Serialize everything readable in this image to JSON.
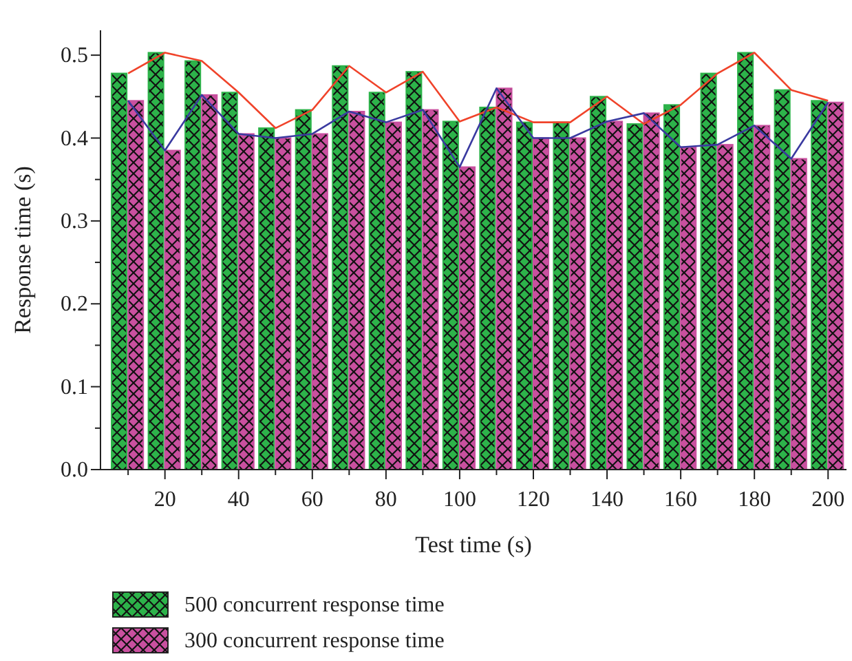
{
  "chart_data": {
    "type": "bar",
    "xlabel": "Test time (s)",
    "ylabel": "Response time (s)",
    "x": [
      10,
      20,
      30,
      40,
      50,
      60,
      70,
      80,
      90,
      100,
      110,
      120,
      130,
      140,
      150,
      160,
      170,
      180,
      190,
      200
    ],
    "xlim": [
      2.5,
      205
    ],
    "xticks": [
      {
        "value": 10,
        "label": null
      },
      20,
      {
        "value": 30,
        "label": null
      },
      40,
      {
        "value": 50,
        "label": null
      },
      60,
      {
        "value": 70,
        "label": null
      },
      80,
      {
        "value": 90,
        "label": null
      },
      100,
      {
        "value": 110,
        "label": null
      },
      120,
      {
        "value": 130,
        "label": null
      },
      140,
      {
        "value": 150,
        "label": null
      },
      160,
      {
        "value": 170,
        "label": null
      },
      180,
      {
        "value": 190,
        "label": null
      },
      200
    ],
    "ylim": [
      0,
      0.53
    ],
    "yticks": [
      {
        "value": 0,
        "label": "0.0"
      },
      {
        "value": 0.05,
        "label": null
      },
      {
        "value": 0.1,
        "label": "0.1"
      },
      {
        "value": 0.15,
        "label": null
      },
      {
        "value": 0.2,
        "label": "0.2"
      },
      {
        "value": 0.25,
        "label": null
      },
      {
        "value": 0.3,
        "label": "0.3"
      },
      {
        "value": 0.35,
        "label": null
      },
      {
        "value": 0.4,
        "label": "0.4"
      },
      {
        "value": 0.45,
        "label": null
      },
      {
        "value": 0.5,
        "label": "0.5"
      }
    ],
    "series": [
      {
        "name": "500 concurrent response time",
        "color": "#2db34a",
        "values": [
          0.478,
          0.503,
          0.493,
          0.455,
          0.412,
          0.434,
          0.487,
          0.455,
          0.48,
          0.42,
          0.437,
          0.419,
          0.419,
          0.45,
          0.417,
          0.44,
          0.478,
          0.503,
          0.458,
          0.445
        ]
      },
      {
        "name": "300 concurrent response time",
        "color": "#c9509f",
        "values": [
          0.445,
          0.385,
          0.452,
          0.405,
          0.4,
          0.405,
          0.432,
          0.419,
          0.434,
          0.365,
          0.46,
          0.4,
          0.4,
          0.42,
          0.43,
          0.389,
          0.392,
          0.415,
          0.375,
          0.443
        ]
      },
      {
        "type": "line",
        "color": "#f0432a",
        "values": [
          0.478,
          0.503,
          0.493,
          0.455,
          0.412,
          0.434,
          0.487,
          0.455,
          0.48,
          0.42,
          0.437,
          0.419,
          0.419,
          0.45,
          0.417,
          0.44,
          0.478,
          0.503,
          0.458,
          0.445
        ]
      },
      {
        "type": "line",
        "color": "#3a3aa0",
        "values": [
          0.445,
          0.385,
          0.452,
          0.405,
          0.4,
          0.405,
          0.432,
          0.419,
          0.434,
          0.365,
          0.46,
          0.4,
          0.4,
          0.42,
          0.43,
          0.389,
          0.392,
          0.415,
          0.375,
          0.443
        ]
      }
    ],
    "legend": "bottom",
    "grid": false,
    "marker": "none",
    "line_style": "solid"
  }
}
